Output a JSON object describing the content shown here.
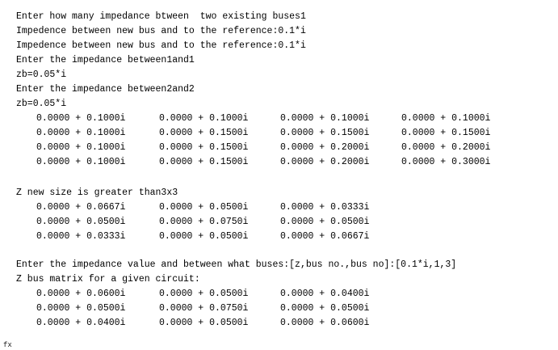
{
  "lines": [
    "Enter how many impedance btween  two existing buses1",
    "Impedence between new bus and to the reference:0.1*i",
    "Impedence between new bus and to the reference:0.1*i",
    "Enter the impedance between1and1",
    "zb=0.05*i",
    "Enter the impedance between2and2",
    "zb=0.05*i"
  ],
  "matrix1": [
    [
      "0.0000 + 0.1000i",
      "0.0000 + 0.1000i",
      "0.0000 + 0.1000i",
      "0.0000 + 0.1000i"
    ],
    [
      "0.0000 + 0.1000i",
      "0.0000 + 0.1500i",
      "0.0000 + 0.1500i",
      "0.0000 + 0.1500i"
    ],
    [
      "0.0000 + 0.1000i",
      "0.0000 + 0.1500i",
      "0.0000 + 0.2000i",
      "0.0000 + 0.2000i"
    ],
    [
      "0.0000 + 0.1000i",
      "0.0000 + 0.1500i",
      "0.0000 + 0.2000i",
      "0.0000 + 0.3000i"
    ]
  ],
  "size_message": "Z new size is greater than3x3",
  "matrix2": [
    [
      "0.0000 + 0.0667i",
      "0.0000 + 0.0500i",
      "0.0000 + 0.0333i"
    ],
    [
      "0.0000 + 0.0500i",
      "0.0000 + 0.0750i",
      "0.0000 + 0.0500i"
    ],
    [
      "0.0000 + 0.0333i",
      "0.0000 + 0.0500i",
      "0.0000 + 0.0667i"
    ]
  ],
  "input_line": "Enter the impedance value and between what buses:[z,bus no.,bus no]:[0.1*i,1,3]",
  "zbus_title": "Z bus matrix for a given circuit:",
  "matrix3": [
    [
      "0.0000 + 0.0600i",
      "0.0000 + 0.0500i",
      "0.0000 + 0.0400i"
    ],
    [
      "0.0000 + 0.0500i",
      "0.0000 + 0.0750i",
      "0.0000 + 0.0500i"
    ],
    [
      "0.0000 + 0.0400i",
      "0.0000 + 0.0500i",
      "0.0000 + 0.0600i"
    ]
  ],
  "prompt_symbol": "fx"
}
